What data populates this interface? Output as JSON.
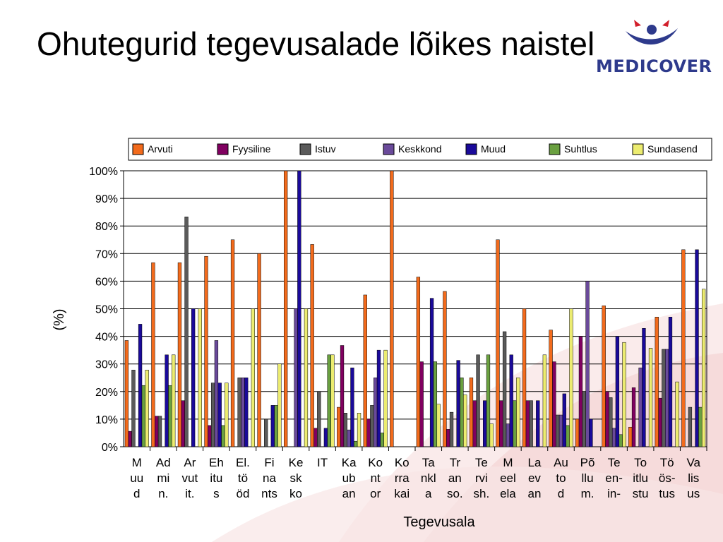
{
  "slide": {
    "title": "Ohutegurid tegevusalade lõikes naistel",
    "logo_text": "MEDICOVER"
  },
  "colors": {
    "Arvuti": "#f36b1c",
    "Fyysiline": "#800060",
    "Istuv": "#5a5a5a",
    "Keskkond": "#6a4a9a",
    "Muud": "#1a0a9a",
    "Suhtlus": "#6aa040",
    "Sundasend": "#ecec70"
  },
  "chart_data": {
    "type": "bar",
    "xlabel": "Tegevusala",
    "ylabel": "(%)",
    "ylim": [
      0,
      100
    ],
    "yticks": [
      "0%",
      "10%",
      "20%",
      "30%",
      "40%",
      "50%",
      "60%",
      "70%",
      "80%",
      "90%",
      "100%"
    ],
    "grid": true,
    "legend_position": "top",
    "categories": [
      [
        "M",
        "uu",
        "d"
      ],
      [
        "Ad",
        "mi",
        "n."
      ],
      [
        "Ar",
        "vut",
        "it."
      ],
      [
        "Eh",
        "itu",
        "s"
      ],
      [
        "El.",
        "tö",
        "öd"
      ],
      [
        "Fi",
        "na",
        "nts"
      ],
      [
        "Ke",
        "sk",
        "ko"
      ],
      [
        "IT"
      ],
      [
        "Ka",
        "ub",
        "an"
      ],
      [
        "Ko",
        "nt",
        "or"
      ],
      [
        "Ko",
        "rra",
        "kai"
      ],
      [
        "Ta",
        "nkl",
        "a"
      ],
      [
        "Tr",
        "an",
        "so."
      ],
      [
        "Te",
        "rvi",
        "sh."
      ],
      [
        "M",
        "eel",
        "ela"
      ],
      [
        "La",
        "ev",
        "an"
      ],
      [
        "Au",
        "to",
        "d"
      ],
      [
        "Põ",
        "llu",
        "m."
      ],
      [
        "Te",
        "en-",
        "in-"
      ],
      [
        "To",
        "itlu",
        "stu"
      ],
      [
        "Tö",
        "ös-",
        "tus"
      ],
      [
        "Va",
        "lis",
        "us"
      ]
    ],
    "series": [
      {
        "name": "Arvuti",
        "values": [
          38.5,
          66.7,
          66.7,
          69,
          75,
          70,
          100,
          73.3,
          14.3,
          55,
          100,
          61.5,
          56.3,
          25,
          75,
          50,
          42.3,
          10,
          51.1,
          7.1,
          47,
          71.4
        ]
      },
      {
        "name": "Fyysiline",
        "values": [
          5.6,
          11.1,
          16.7,
          7.7,
          0,
          0,
          0,
          6.7,
          36.7,
          10,
          0,
          30.8,
          6.3,
          16.7,
          16.7,
          16.7,
          30.8,
          40,
          20,
          21.4,
          17.6,
          0
        ]
      },
      {
        "name": "Istuv",
        "values": [
          27.8,
          11.1,
          83.3,
          23.1,
          25,
          10,
          0,
          20,
          12.2,
          15,
          0,
          0,
          12.5,
          33.3,
          41.7,
          16.7,
          11.5,
          20,
          17.8,
          0,
          35.3,
          14.3
        ]
      },
      {
        "name": "Keskkond",
        "values": [
          0,
          0,
          0,
          38.5,
          25,
          0,
          50,
          0,
          6.1,
          25,
          0,
          0,
          0,
          0,
          8.3,
          0,
          11.5,
          60,
          6.7,
          28.6,
          35.3,
          0
        ]
      },
      {
        "name": "Muud",
        "values": [
          44.4,
          33.3,
          50,
          23.1,
          25,
          15,
          100,
          6.7,
          28.6,
          35,
          0,
          53.8,
          31.3,
          16.7,
          33.3,
          16.7,
          19.2,
          10,
          40,
          42.9,
          47,
          71.4
        ]
      },
      {
        "name": "Suhtlus",
        "values": [
          22.2,
          22.2,
          0,
          7.7,
          0,
          15,
          0,
          33.3,
          2,
          5,
          0,
          30.8,
          25,
          33.3,
          16.7,
          0,
          7.7,
          0,
          4.4,
          0,
          0,
          14.3
        ]
      },
      {
        "name": "Sundasend",
        "values": [
          27.8,
          33.3,
          50,
          23.1,
          50,
          30,
          50,
          33.3,
          12.2,
          35,
          0,
          15.4,
          18.8,
          8.3,
          25,
          33.3,
          50,
          0,
          37.8,
          35.7,
          23.5,
          57.1
        ]
      }
    ]
  }
}
